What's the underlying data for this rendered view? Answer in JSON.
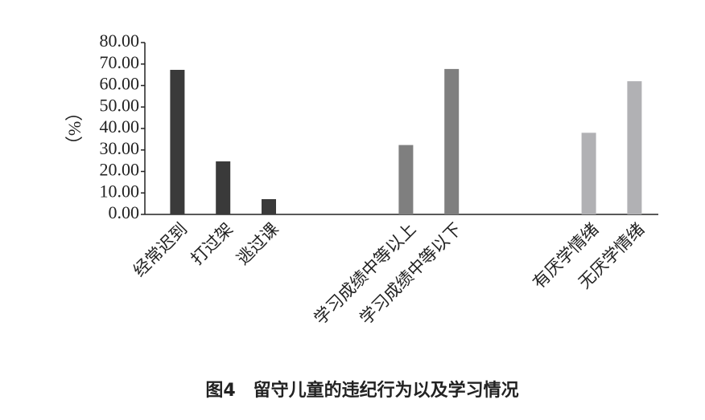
{
  "chart_data": {
    "type": "bar",
    "title": "图4　留守儿童的违纪行为以及学习情况",
    "y_label": "（%）",
    "categories": [
      "经常迟到",
      "打过架",
      "逃过课",
      null,
      null,
      "学习成绩中等以上",
      "学习成绩中等以下",
      null,
      null,
      "有厌学情绪",
      "无厌学情绪"
    ],
    "values": [
      67.3,
      24.7,
      7.1,
      null,
      null,
      32.3,
      67.7,
      null,
      null,
      38.0,
      62.0
    ],
    "colors": [
      "#3a3a3a",
      "#3a3a3a",
      "#3a3a3a",
      "#3a3a3a",
      "#3a3a3a",
      "#7f7f7f",
      "#7f7f7f",
      "#b1b1b4",
      "#b1b1b4",
      "#b1b1b4",
      "#b1b1b4"
    ],
    "ylim": [
      0,
      80
    ],
    "yticks": [
      {
        "value": 0,
        "label": "0.00"
      },
      {
        "value": 10,
        "label": "10.00"
      },
      {
        "value": 20,
        "label": "20.00"
      },
      {
        "value": 30,
        "label": "30.00"
      },
      {
        "value": 40,
        "label": "40.00"
      },
      {
        "value": 50,
        "label": "50.00"
      },
      {
        "value": 60,
        "label": "60.00"
      },
      {
        "value": 70,
        "label": "70.00"
      },
      {
        "value": 80,
        "label": "80.00"
      }
    ],
    "grid": false
  }
}
